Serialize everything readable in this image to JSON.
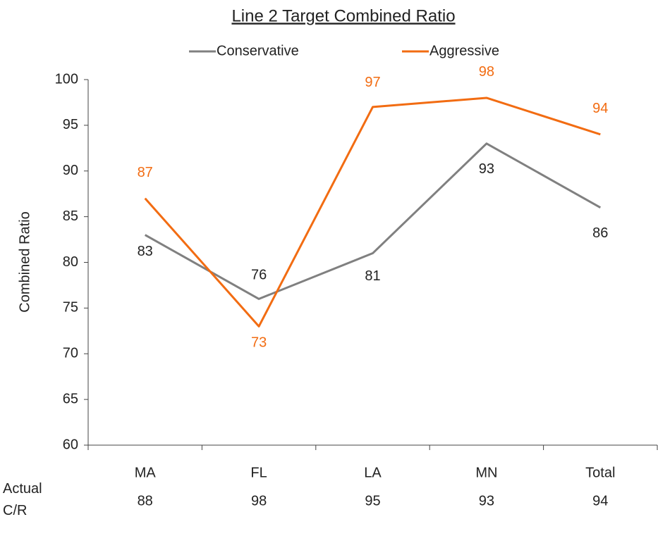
{
  "chart_data": {
    "type": "line",
    "title": "Line 2 Target Combined Ratio",
    "y_label": "Combined Ratio",
    "categories": [
      "MA",
      "FL",
      "LA",
      "MN",
      "Total"
    ],
    "series": [
      {
        "name": "Conservative",
        "color": "#808080",
        "values": [
          83,
          76,
          81,
          93,
          86
        ]
      },
      {
        "name": "Aggressive",
        "color": "#f26c12",
        "values": [
          87,
          73,
          97,
          98,
          94
        ]
      }
    ],
    "ylim": [
      60,
      100
    ],
    "yticks": [
      60,
      65,
      70,
      75,
      80,
      85,
      90,
      95,
      100
    ],
    "grid": false,
    "legend": "top",
    "actual": {
      "label": "Actual C/R",
      "values": [
        88,
        98,
        95,
        93,
        94
      ]
    }
  }
}
